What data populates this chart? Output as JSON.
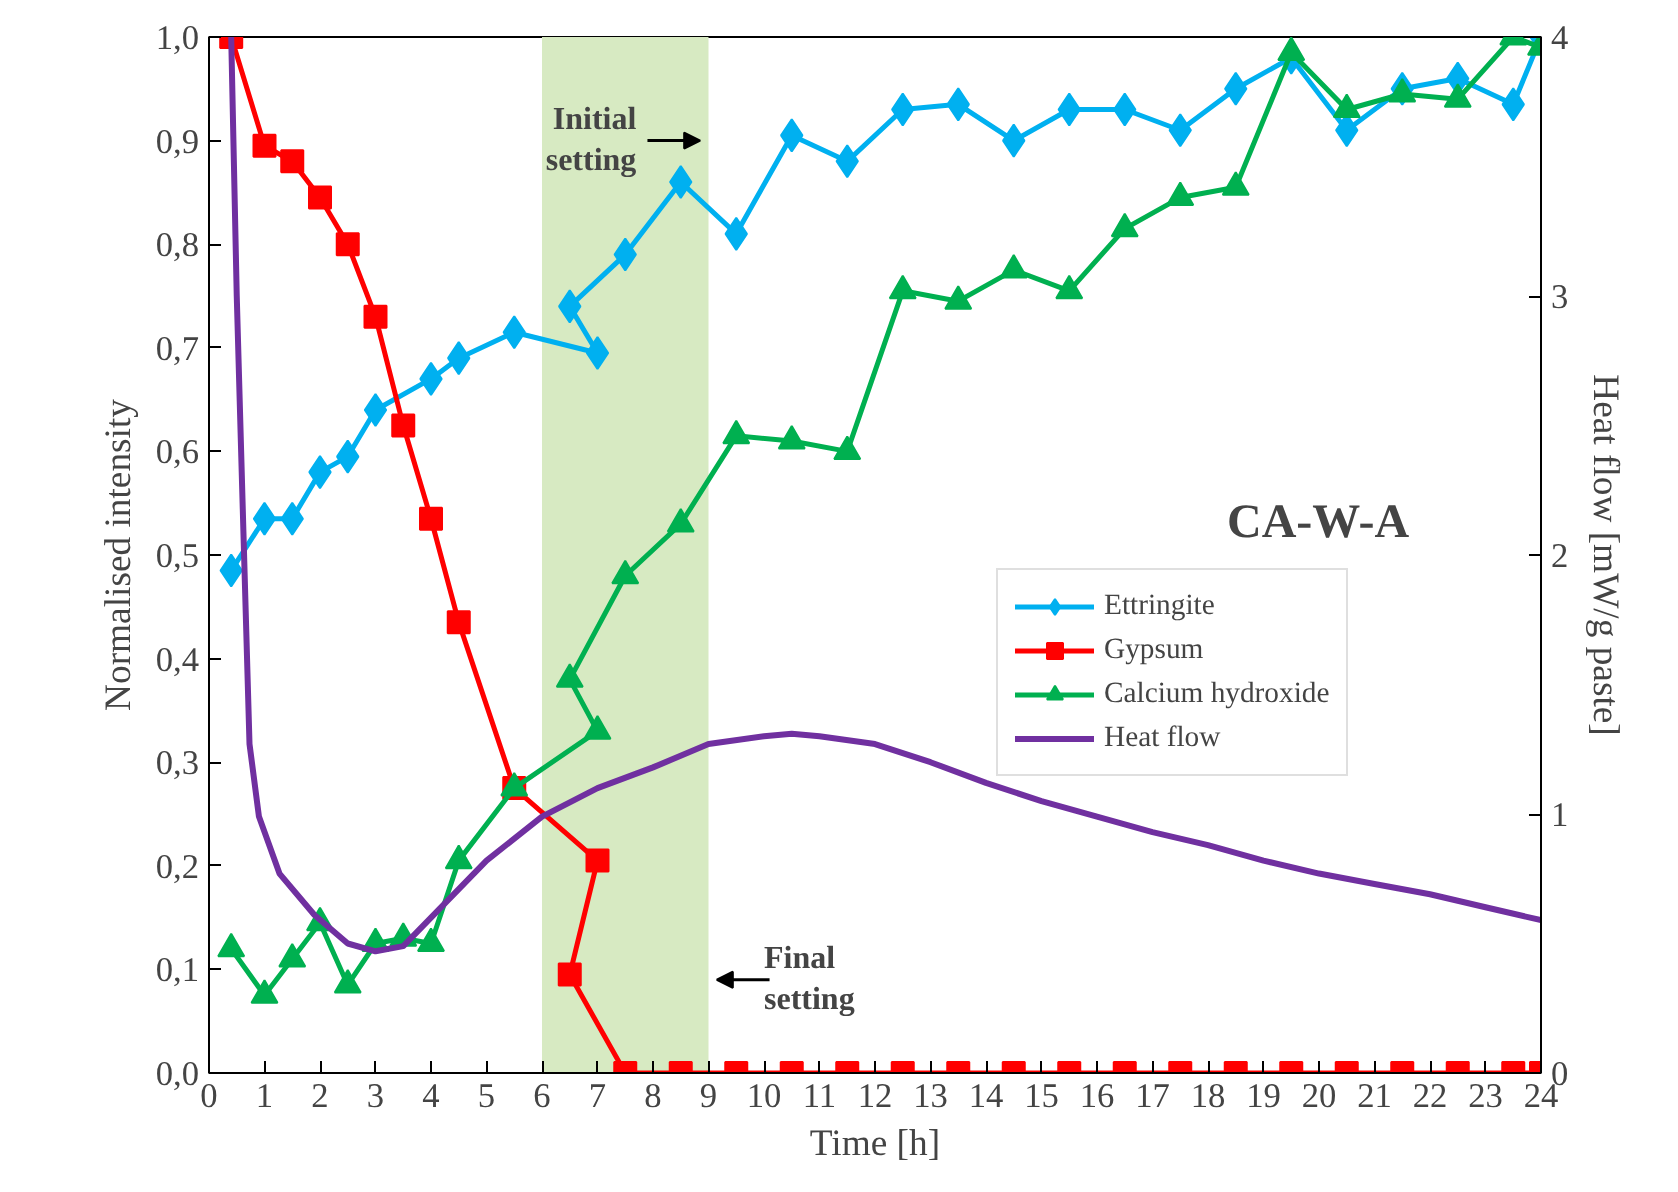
{
  "chart_data": {
    "type": "line",
    "xlabel": "Time [h]",
    "ylabel": "Normalised intensity",
    "y2label": "Heat flow [mW/g paste]",
    "xlim": [
      0,
      24
    ],
    "xticks": [
      0,
      1,
      2,
      3,
      4,
      5,
      6,
      7,
      8,
      9,
      10,
      11,
      12,
      13,
      14,
      15,
      16,
      17,
      18,
      19,
      20,
      21,
      22,
      23,
      24
    ],
    "ylim": [
      0,
      1
    ],
    "yticks": [
      {
        "value": 0,
        "label": "0,0"
      },
      {
        "value": 0.1,
        "label": "0,1"
      },
      {
        "value": 0.2,
        "label": "0,2"
      },
      {
        "value": 0.3,
        "label": "0,3"
      },
      {
        "value": 0.4,
        "label": "0,4"
      },
      {
        "value": 0.5,
        "label": "0,5"
      },
      {
        "value": 0.6,
        "label": "0,6"
      },
      {
        "value": 0.7,
        "label": "0,7"
      },
      {
        "value": 0.8,
        "label": "0,8"
      },
      {
        "value": 0.9,
        "label": "0,9"
      },
      {
        "value": 1,
        "label": "1,0"
      }
    ],
    "y2lim": [
      0,
      4
    ],
    "y2ticks": [
      0,
      1,
      2,
      3,
      4
    ],
    "grid": false,
    "legend": "right",
    "line_style": "solid",
    "series": [
      {
        "name": "Ettringite",
        "color": "#00b0f0",
        "marker": "diamond",
        "x": [
          0.4,
          1.0,
          1.5,
          2.0,
          2.5,
          3.0,
          4.0,
          4.5,
          5.5,
          7.0,
          6.5,
          7.5,
          8.5,
          9.5,
          10.5,
          11.5,
          12.5,
          13.5,
          14.5,
          15.5,
          16.5,
          17.5,
          18.5,
          19.5,
          20.5,
          21.5,
          22.5,
          23.5,
          24
        ],
        "values": [
          0.485,
          0.535,
          0.535,
          0.58,
          0.595,
          0.64,
          0.67,
          0.69,
          0.715,
          0.695,
          0.74,
          0.79,
          0.86,
          0.81,
          0.905,
          0.88,
          0.93,
          0.935,
          0.9,
          0.93,
          0.93,
          0.91,
          0.95,
          0.98,
          0.91,
          0.95,
          0.96,
          0.935,
          1.0
        ]
      },
      {
        "name": "Gypsum",
        "color": "#ff0000",
        "marker": "square",
        "x": [
          0.4,
          1.0,
          1.5,
          2.0,
          2.5,
          3.0,
          3.5,
          4.0,
          4.5,
          5.5,
          7.0,
          6.5,
          7.5,
          8.5,
          9.5,
          10.5,
          11.5,
          12.5,
          13.5,
          14.5,
          15.5,
          16.5,
          17.5,
          18.5,
          19.5,
          20.5,
          21.5,
          22.5,
          23.5,
          24
        ],
        "values": [
          1.0,
          0.895,
          0.88,
          0.845,
          0.8,
          0.73,
          0.625,
          0.535,
          0.435,
          0.275,
          0.205,
          0.095,
          0,
          0,
          0,
          0,
          0,
          0,
          0,
          0,
          0,
          0,
          0,
          0,
          0,
          0,
          0,
          0,
          0,
          0
        ]
      },
      {
        "name": "Calcium hydroxide",
        "color": "#00b050",
        "marker": "triangle",
        "x": [
          0.4,
          1.0,
          1.5,
          2.0,
          2.5,
          3.0,
          3.5,
          4.0,
          4.5,
          5.5,
          7.0,
          6.5,
          7.5,
          8.5,
          9.5,
          10.5,
          11.5,
          12.5,
          13.5,
          14.5,
          15.5,
          16.5,
          17.5,
          18.5,
          19.5,
          20.5,
          21.5,
          22.5,
          23.5,
          24
        ],
        "values": [
          0.12,
          0.075,
          0.11,
          0.145,
          0.085,
          0.125,
          0.13,
          0.125,
          0.205,
          0.275,
          0.33,
          0.38,
          0.48,
          0.53,
          0.615,
          0.61,
          0.6,
          0.755,
          0.745,
          0.775,
          0.755,
          0.815,
          0.845,
          0.855,
          0.985,
          0.93,
          0.945,
          0.94,
          1.0,
          0.99
        ]
      },
      {
        "name": "Heat flow",
        "color": "#7030a0",
        "marker": "none",
        "axis": "y2",
        "x": [
          0.4,
          0.5,
          0.62,
          0.73,
          0.9,
          1.27,
          1.9,
          2.5,
          3.0,
          3.5,
          4.0,
          5.0,
          6.0,
          7.0,
          8.0,
          9.0,
          10.0,
          10.5,
          11.0,
          12.0,
          13.0,
          14.0,
          15.0,
          16.0,
          17.0,
          18.0,
          19.0,
          20.0,
          21.0,
          22.0,
          23.0,
          24.0
        ],
        "values": [
          4.0,
          3.0,
          2.09,
          1.27,
          0.99,
          0.77,
          0.61,
          0.5,
          0.47,
          0.49,
          0.6,
          0.82,
          0.99,
          1.1,
          1.18,
          1.27,
          1.3,
          1.31,
          1.3,
          1.27,
          1.2,
          1.12,
          1.05,
          0.99,
          0.93,
          0.88,
          0.82,
          0.77,
          0.73,
          0.69,
          0.64,
          0.59
        ]
      }
    ],
    "bands": [
      {
        "axis": "x",
        "from": 6,
        "to": 9,
        "color": "#d7eac2"
      }
    ],
    "annotations": [
      "CA-W-A",
      {
        "text": "Initial setting",
        "x": 9,
        "y": 0.9
      },
      {
        "text": "Final setting",
        "x": 9,
        "y": 0.09
      }
    ]
  }
}
